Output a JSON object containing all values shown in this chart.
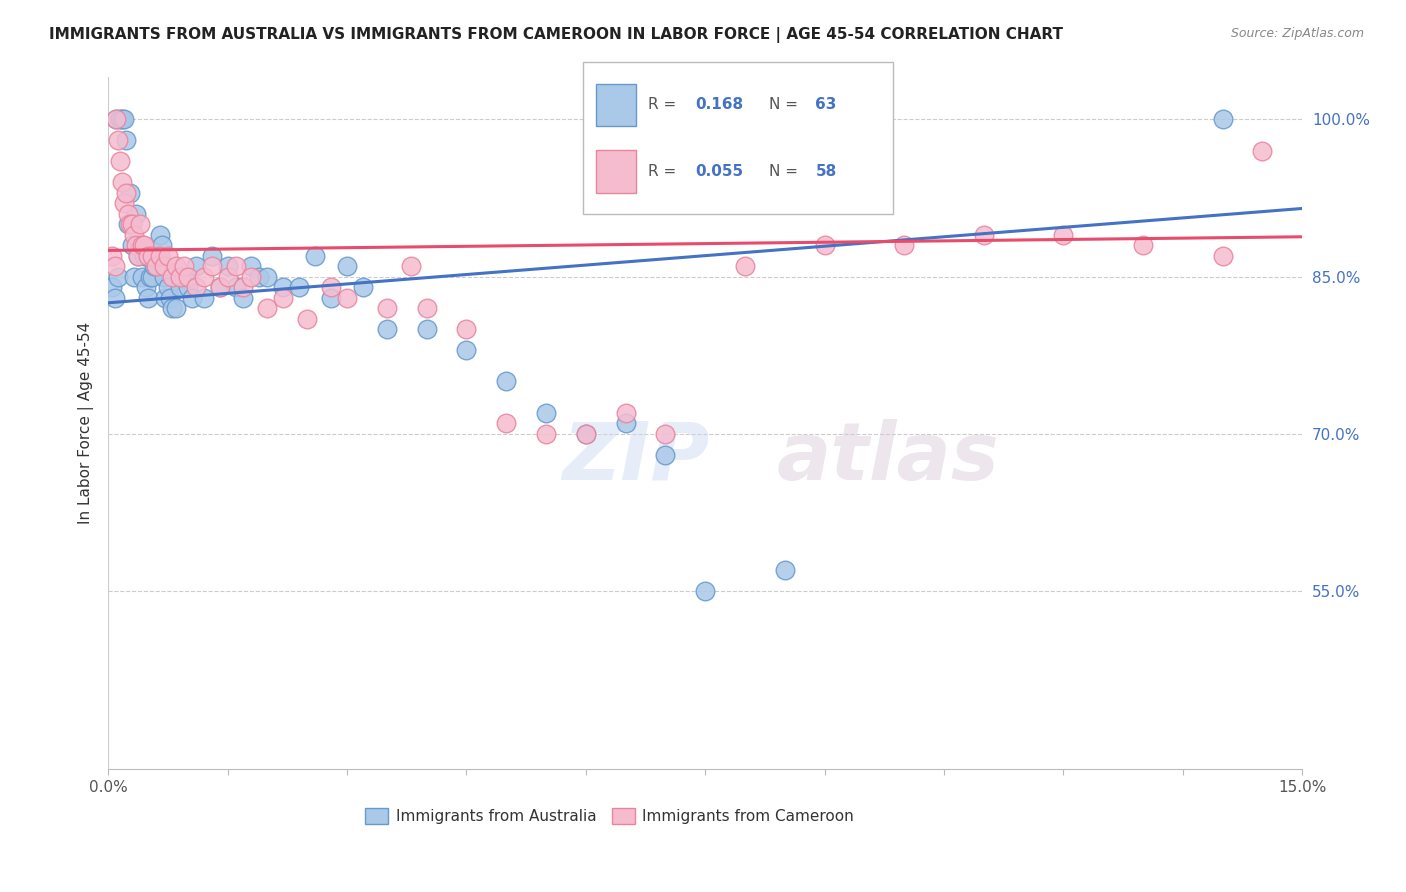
{
  "title": "IMMIGRANTS FROM AUSTRALIA VS IMMIGRANTS FROM CAMEROON IN LABOR FORCE | AGE 45-54 CORRELATION CHART",
  "source": "Source: ZipAtlas.com",
  "ylabel": "In Labor Force | Age 45-54",
  "yticks": [
    100.0,
    85.0,
    70.0,
    55.0
  ],
  "ytick_labels": [
    "100.0%",
    "85.0%",
    "70.0%",
    "55.0%"
  ],
  "xmin": 0.0,
  "xmax": 15.0,
  "ymin": 38.0,
  "ymax": 104.0,
  "australia_color": "#aac8e8",
  "australia_edge": "#6699cc",
  "cameroon_color": "#f5bcd0",
  "cameroon_edge": "#e8849c",
  "trendline_australia": "#4472c4",
  "trendline_cameroon": "#e84c6c",
  "legend_R_australia": "0.168",
  "legend_N_australia": "63",
  "legend_R_cameroon": "0.055",
  "legend_N_cameroon": "58",
  "watermark": "ZIPatlas",
  "aus_trend_x0": 0.0,
  "aus_trend_y0": 82.5,
  "aus_trend_x1": 15.0,
  "aus_trend_y1": 91.5,
  "cam_trend_x0": 0.0,
  "cam_trend_y0": 87.5,
  "cam_trend_x1": 15.0,
  "cam_trend_y1": 88.8,
  "australia_x": [
    0.05,
    0.08,
    0.1,
    0.12,
    0.15,
    0.18,
    0.2,
    0.22,
    0.25,
    0.28,
    0.3,
    0.32,
    0.35,
    0.38,
    0.4,
    0.42,
    0.45,
    0.48,
    0.5,
    0.52,
    0.55,
    0.58,
    0.6,
    0.62,
    0.65,
    0.68,
    0.7,
    0.72,
    0.75,
    0.78,
    0.8,
    0.85,
    0.9,
    0.95,
    1.0,
    1.05,
    1.1,
    1.2,
    1.3,
    1.4,
    1.5,
    1.6,
    1.7,
    1.8,
    1.9,
    2.0,
    2.2,
    2.4,
    2.6,
    2.8,
    3.0,
    3.2,
    3.5,
    4.0,
    4.5,
    5.0,
    5.5,
    6.0,
    6.5,
    7.0,
    7.5,
    8.5,
    14.0
  ],
  "australia_y": [
    84.0,
    83.0,
    100.0,
    85.0,
    100.0,
    100.0,
    100.0,
    98.0,
    90.0,
    93.0,
    88.0,
    85.0,
    91.0,
    87.0,
    88.0,
    85.0,
    87.0,
    84.0,
    83.0,
    85.0,
    85.0,
    86.0,
    86.0,
    87.0,
    89.0,
    88.0,
    85.0,
    83.0,
    84.0,
    83.0,
    82.0,
    82.0,
    84.0,
    85.0,
    84.0,
    83.0,
    86.0,
    83.0,
    87.0,
    84.0,
    86.0,
    84.0,
    83.0,
    86.0,
    85.0,
    85.0,
    84.0,
    84.0,
    87.0,
    83.0,
    86.0,
    84.0,
    80.0,
    80.0,
    78.0,
    75.0,
    72.0,
    70.0,
    71.0,
    68.0,
    55.0,
    57.0,
    100.0
  ],
  "cameroon_x": [
    0.05,
    0.08,
    0.1,
    0.12,
    0.15,
    0.18,
    0.2,
    0.22,
    0.25,
    0.28,
    0.3,
    0.32,
    0.35,
    0.38,
    0.4,
    0.42,
    0.45,
    0.5,
    0.55,
    0.6,
    0.65,
    0.7,
    0.75,
    0.8,
    0.85,
    0.9,
    0.95,
    1.0,
    1.1,
    1.2,
    1.3,
    1.4,
    1.5,
    1.6,
    1.7,
    1.8,
    2.0,
    2.2,
    2.5,
    2.8,
    3.0,
    3.5,
    4.0,
    4.5,
    5.0,
    5.5,
    6.0,
    6.5,
    7.0,
    8.0,
    9.0,
    10.0,
    11.0,
    12.0,
    13.0,
    14.0,
    14.5,
    3.8
  ],
  "cameroon_y": [
    87.0,
    86.0,
    100.0,
    98.0,
    96.0,
    94.0,
    92.0,
    93.0,
    91.0,
    90.0,
    90.0,
    89.0,
    88.0,
    87.0,
    90.0,
    88.0,
    88.0,
    87.0,
    87.0,
    86.0,
    87.0,
    86.0,
    87.0,
    85.0,
    86.0,
    85.0,
    86.0,
    85.0,
    84.0,
    85.0,
    86.0,
    84.0,
    85.0,
    86.0,
    84.0,
    85.0,
    82.0,
    83.0,
    81.0,
    84.0,
    83.0,
    82.0,
    82.0,
    80.0,
    71.0,
    70.0,
    70.0,
    72.0,
    70.0,
    86.0,
    88.0,
    88.0,
    89.0,
    89.0,
    88.0,
    87.0,
    97.0,
    86.0
  ]
}
